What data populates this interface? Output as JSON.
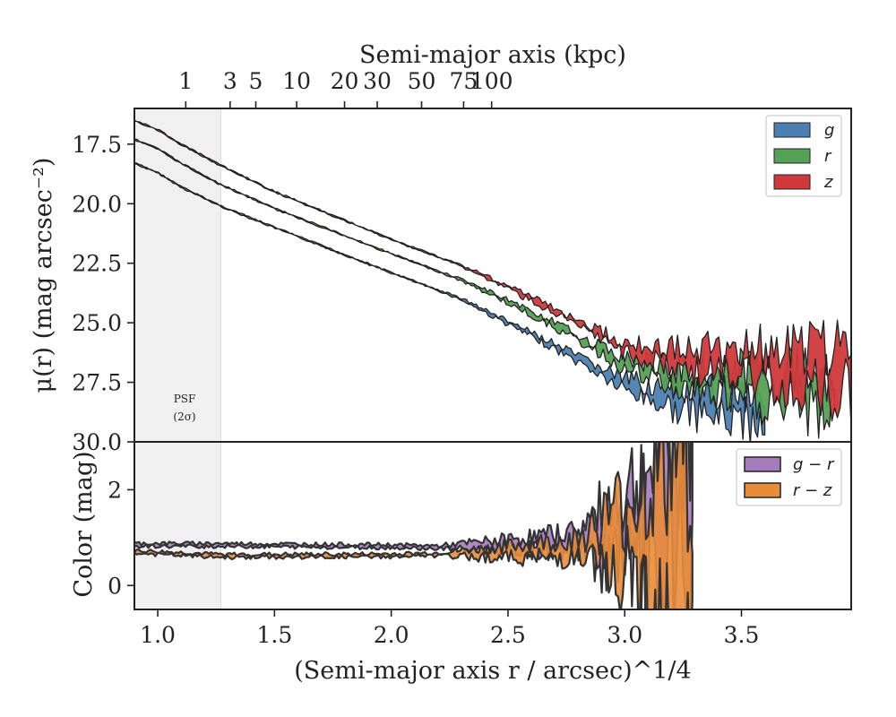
{
  "chart_data": [
    {
      "type": "area",
      "panel": "surface-brightness",
      "xlabel": "(Semi-major axis r / arcsec)^1/4",
      "ylabel": "μ(r) (mag arcsec⁻²)",
      "top_axis_label": "Semi-major axis (kpc)",
      "top_axis_ticks": [
        {
          "label": "1",
          "x": 1.12
        },
        {
          "label": "3",
          "x": 1.31
        },
        {
          "label": "5",
          "x": 1.42
        },
        {
          "label": "10",
          "x": 1.595
        },
        {
          "label": "20",
          "x": 1.8
        },
        {
          "label": "30",
          "x": 1.94
        },
        {
          "label": "50",
          "x": 2.13
        },
        {
          "label": "75",
          "x": 2.31
        },
        {
          "label": "100",
          "x": 2.43
        }
      ],
      "xlim": [
        0.9,
        3.97
      ],
      "ylim": [
        30.0,
        16.0
      ],
      "y_inverted": true,
      "yticks": [
        "17.5",
        "20.0",
        "22.5",
        "25.0",
        "27.5",
        "30.0"
      ],
      "shaded_region": {
        "x": [
          0.9,
          1.27
        ],
        "label_line1": "PSF",
        "label_line2": "(2σ)"
      },
      "legend": {
        "position": "top-right",
        "entries": [
          {
            "name": "g",
            "color": "#4c7fb0"
          },
          {
            "name": "r",
            "color": "#55a155"
          },
          {
            "name": "z",
            "color": "#d0393b"
          }
        ]
      },
      "series": [
        {
          "name": "g",
          "color": "#4c7fb0",
          "x": [
            0.9,
            1.0,
            1.1,
            1.27,
            1.5,
            2.0,
            2.3,
            2.5,
            2.7,
            2.85,
            3.0,
            3.1,
            3.2,
            3.3,
            3.6
          ],
          "y": [
            18.3,
            18.7,
            19.3,
            20.1,
            21.0,
            22.9,
            24.0,
            25.0,
            26.0,
            26.8,
            27.6,
            27.9,
            28.2,
            28.4,
            28.5
          ]
        },
        {
          "name": "r",
          "color": "#55a155",
          "x": [
            0.9,
            1.0,
            1.1,
            1.27,
            1.5,
            2.0,
            2.3,
            2.5,
            2.7,
            2.85,
            3.0,
            3.1,
            3.2,
            3.5,
            3.9
          ],
          "y": [
            17.3,
            17.7,
            18.3,
            19.2,
            20.2,
            22.1,
            23.2,
            24.1,
            25.1,
            25.9,
            26.7,
            27.0,
            27.3,
            27.6,
            27.9
          ]
        },
        {
          "name": "z",
          "color": "#d0393b",
          "x": [
            0.9,
            1.0,
            1.1,
            1.27,
            1.5,
            2.0,
            2.3,
            2.5,
            2.7,
            2.85,
            3.0,
            3.1,
            3.2,
            3.5,
            3.97
          ],
          "y": [
            16.5,
            16.9,
            17.5,
            18.4,
            19.5,
            21.5,
            22.6,
            23.5,
            24.5,
            25.3,
            26.0,
            26.3,
            26.5,
            26.7,
            26.9
          ]
        }
      ]
    },
    {
      "type": "area",
      "panel": "color",
      "xlabel": "(Semi-major axis r / arcsec)^1/4",
      "ylabel": "Color (mag)",
      "xlim": [
        0.9,
        3.97
      ],
      "ylim": [
        -0.5,
        3.0
      ],
      "yticks": [
        "0",
        "2"
      ],
      "xticks": [
        "1.0",
        "1.5",
        "2.0",
        "2.5",
        "3.0",
        "3.5"
      ],
      "legend": {
        "position": "top-right",
        "entries": [
          {
            "name": "g − r",
            "color": "#a57cbc"
          },
          {
            "name": "r − z",
            "color": "#e98c3a"
          }
        ]
      },
      "series": [
        {
          "name": "g − r",
          "color": "#a57cbc",
          "x": [
            0.9,
            1.27,
            1.5,
            2.0,
            2.2,
            2.5,
            2.7,
            2.85,
            2.95,
            3.05,
            3.15,
            3.29
          ],
          "y": [
            0.85,
            0.85,
            0.84,
            0.82,
            0.8,
            0.85,
            0.9,
            1.0,
            1.1,
            1.2,
            1.4,
            1.6
          ]
        },
        {
          "name": "r − z",
          "color": "#e98c3a",
          "x": [
            0.9,
            1.27,
            1.5,
            2.0,
            2.2,
            2.5,
            2.7,
            2.85,
            2.95,
            3.05,
            3.15,
            3.29
          ],
          "y": [
            0.7,
            0.62,
            0.62,
            0.63,
            0.65,
            0.7,
            0.75,
            0.8,
            0.85,
            0.95,
            1.1,
            1.2
          ]
        }
      ]
    }
  ]
}
